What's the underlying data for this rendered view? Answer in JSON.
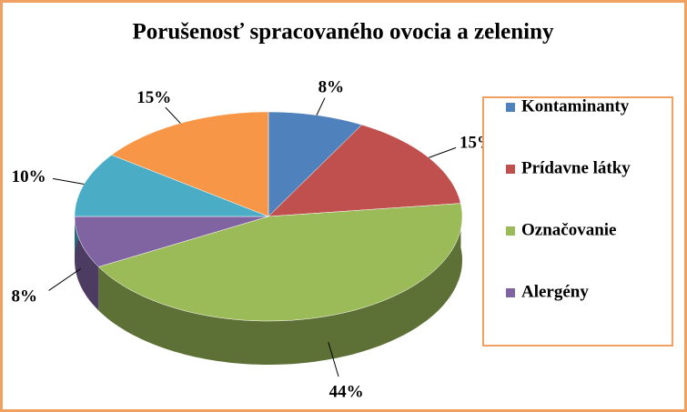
{
  "chart_data": {
    "type": "pie",
    "title": "Porušenosť spracovaného ovocia a zeleniny",
    "categories": [
      "Kontaminanty",
      "Prídavne látky",
      "Označovanie",
      "Alergény",
      null,
      null
    ],
    "values": [
      8,
      15,
      44,
      8,
      10,
      15
    ],
    "value_labels": [
      "8%",
      "15%",
      "44%",
      "8%",
      "10%",
      "15%"
    ],
    "colors": [
      "#4f81bd",
      "#c0504d",
      "#9bbb59",
      "#8064a2",
      "#4bacc6",
      "#f79646"
    ],
    "legend": "right"
  }
}
